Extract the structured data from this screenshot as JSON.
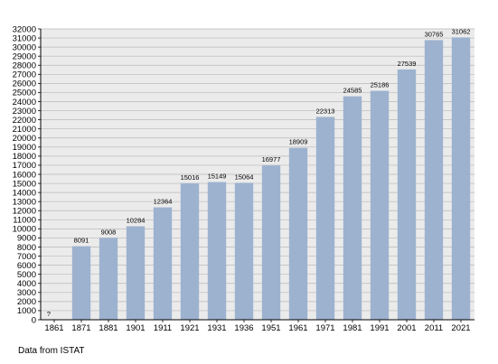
{
  "chart_data": {
    "type": "bar",
    "categories": [
      "1861",
      "1871",
      "1881",
      "1901",
      "1911",
      "1921",
      "1931",
      "1936",
      "1951",
      "1961",
      "1971",
      "1981",
      "1991",
      "2001",
      "2011",
      "2021"
    ],
    "values": [
      null,
      8091,
      9008,
      10284,
      12364,
      15016,
      15149,
      15064,
      16977,
      18909,
      22313,
      24585,
      25186,
      27539,
      30765,
      31062
    ],
    "data_labels": [
      "?",
      "8091",
      "9008",
      "10284",
      "12364",
      "15016",
      "15149",
      "15064",
      "16977",
      "18909",
      "22313",
      "24585",
      "25186",
      "27539",
      "30765",
      "31062"
    ],
    "ylim": [
      0,
      32000
    ],
    "ytick_step": 1000,
    "grid": true,
    "colors": {
      "bar": "#9db2cf",
      "plot_bg": "#ebebeb",
      "grid": "#b9b9b9",
      "axis": "#000000"
    }
  },
  "source_note": "Data from ISTAT"
}
